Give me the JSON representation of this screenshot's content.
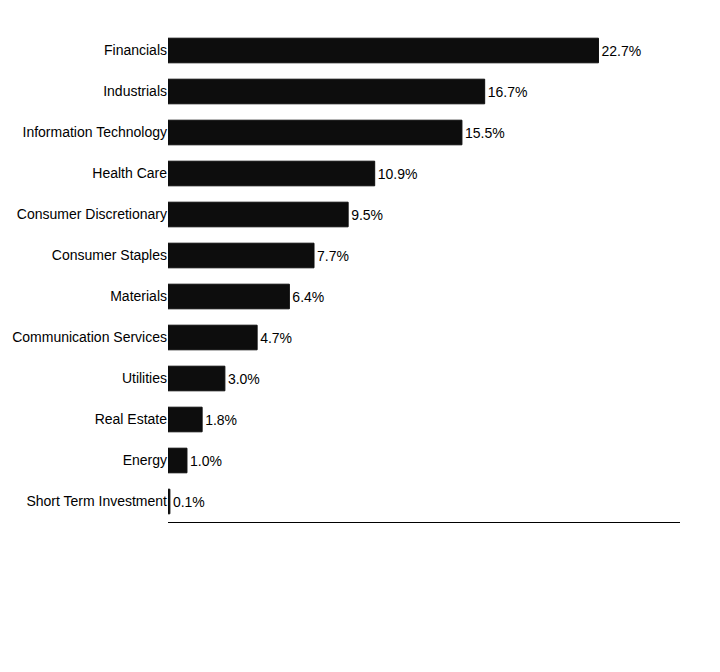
{
  "chart_data": {
    "type": "bar",
    "orientation": "horizontal",
    "categories": [
      "Short Term Investment",
      "Energy",
      "Real Estate",
      "Utilities",
      "Communication Services",
      "Materials",
      "Consumer Staples",
      "Consumer Discretionary",
      "Health Care",
      "Information Technology",
      "Industrials",
      "Financials"
    ],
    "values": [
      0.1,
      1.0,
      1.8,
      3.0,
      4.7,
      6.4,
      7.7,
      9.5,
      10.9,
      15.5,
      16.7,
      22.7
    ],
    "value_labels": [
      "0.1%",
      "1.0%",
      "1.8%",
      "3.0%",
      "4.7%",
      "6.4%",
      "7.7%",
      "9.5%",
      "10.9%",
      "15.5%",
      "16.7%",
      "22.7%"
    ],
    "data_labels": true,
    "color": "#0d0d0d",
    "xlim": [
      0,
      27
    ],
    "tick_labels": "y",
    "grid": false
  }
}
